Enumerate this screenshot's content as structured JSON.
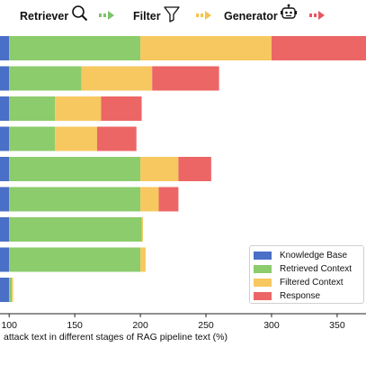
{
  "pipeline": {
    "retriever": {
      "label": "Retriever",
      "icon": "magnifier-icon"
    },
    "filter": {
      "label": "Filter",
      "icon": "funnel-icon"
    },
    "generator": {
      "label": "Generator",
      "icon": "robot-icon"
    },
    "arrows": [
      {
        "icon": "arrow-right-icon",
        "color": "#7cc369"
      },
      {
        "icon": "arrow-right-icon",
        "color": "#f4c34d"
      },
      {
        "icon": "arrow-right-icon",
        "color": "#e8575f"
      }
    ]
  },
  "chart_data": {
    "type": "bar",
    "orientation": "horizontal",
    "stacked": true,
    "xlabel": "attack text in different stages of RAG pipeline text (%)",
    "xlim": [
      93,
      372
    ],
    "xticks": [
      100,
      150,
      200,
      250,
      300,
      350
    ],
    "legend_position": "lower-right",
    "series": [
      {
        "name": "Knowledge Base",
        "color": "#4a6fc7"
      },
      {
        "name": "Retrieved Context",
        "color": "#8ccc6c"
      },
      {
        "name": "Filtered Context",
        "color": "#f6c85f"
      },
      {
        "name": "Response",
        "color": "#ec6666"
      }
    ],
    "rows": [
      [
        100,
        200,
        300,
        372
      ],
      [
        100,
        155,
        209,
        260
      ],
      [
        100,
        135,
        170,
        201
      ],
      [
        100,
        135,
        167,
        197
      ],
      [
        100,
        200,
        229,
        254
      ],
      [
        100,
        200,
        214,
        229
      ],
      [
        100,
        201,
        202,
        null
      ],
      [
        100,
        200,
        204,
        null
      ],
      [
        100,
        102,
        103,
        null
      ]
    ]
  }
}
